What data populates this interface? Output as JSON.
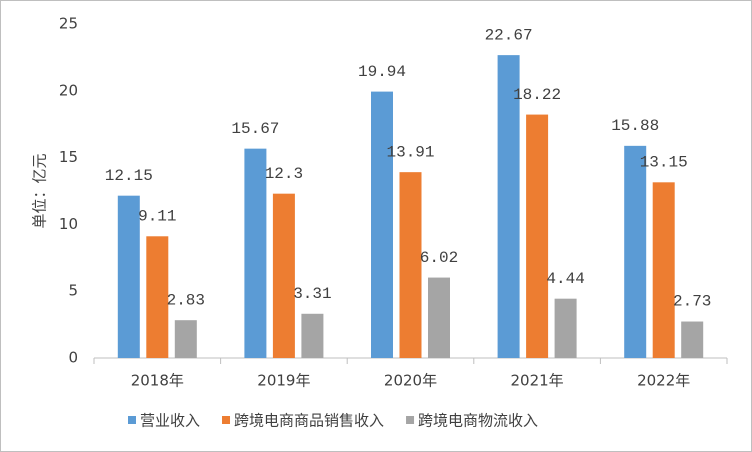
{
  "chart_data": {
    "type": "bar",
    "y_label": "单位：亿元",
    "categories": [
      "2018年",
      "2019年",
      "2020年",
      "2021年",
      "2022年"
    ],
    "series": [
      {
        "name": "营业收入",
        "color": "#5b9bd5",
        "values": [
          12.15,
          15.67,
          19.94,
          22.67,
          15.88
        ]
      },
      {
        "name": "跨境电商商品销售收入",
        "color": "#ed7d31",
        "values": [
          9.11,
          12.3,
          13.91,
          18.22,
          13.15
        ]
      },
      {
        "name": "跨境电商物流收入",
        "color": "#a5a5a5",
        "values": [
          2.83,
          3.31,
          6.02,
          4.44,
          2.73
        ]
      }
    ],
    "ylim": [
      0,
      25
    ],
    "yticks": [
      0,
      5,
      10,
      15,
      20,
      25
    ],
    "grid": false,
    "legend": "bottom"
  }
}
